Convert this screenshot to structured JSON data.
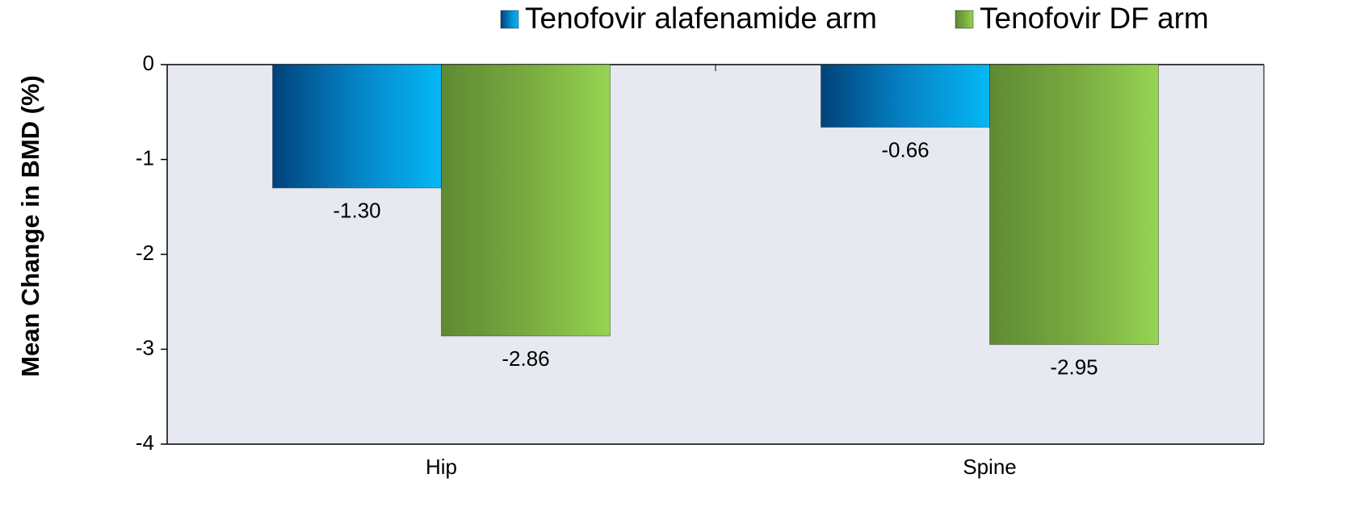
{
  "chart_data": {
    "type": "bar",
    "y_label": "Mean Change in BMD (%)",
    "categories": [
      "Hip",
      "Spine"
    ],
    "series": [
      {
        "name": "Tenofovir alafenamide arm",
        "color": "#0a8fd0",
        "values": [
          -1.3,
          -0.66
        ],
        "value_labels": [
          "-1.30",
          "-0.66"
        ]
      },
      {
        "name": "Tenofovir DF arm",
        "color": "#7db443",
        "values": [
          -2.86,
          -2.95
        ]
      }
    ],
    "ylim": [
      -4,
      0
    ],
    "yticks": [
      0,
      -1,
      -2,
      -3,
      -4
    ],
    "grid": false,
    "legend": "top"
  }
}
